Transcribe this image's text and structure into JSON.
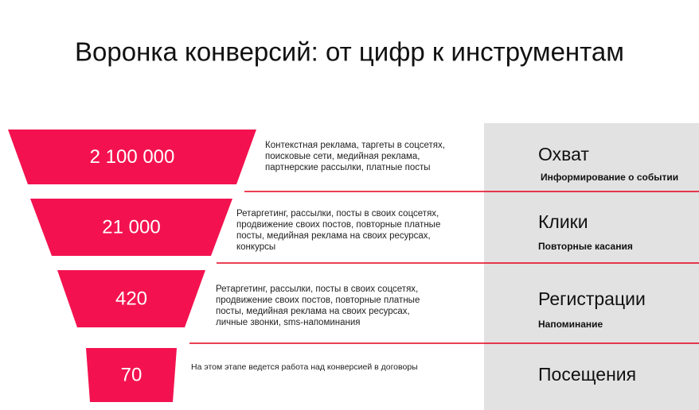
{
  "title": "Воронка конверсий: от цифр к инструментам",
  "stages": [
    {
      "value": "2 100 000",
      "description": [
        "Контекстная реклама, таргеты в соцсетях,",
        "поисковые сети, медийная реклама,",
        "партнерские рассылки, платные посты"
      ],
      "name": "Охват",
      "subtitle": "Информирование о событии"
    },
    {
      "value": "21 000",
      "description": [
        "Ретаргетинг, рассылки, посты в своих соцсетях,",
        "продвижение своих постов, повторные платные",
        "посты, медийная реклама на своих ресурсах,",
        "конкурсы"
      ],
      "name": "Клики",
      "subtitle": "Повторные касания"
    },
    {
      "value": "420",
      "description": [
        "Ретаргетинг, рассылки, посты в своих соцсетях,",
        "продвижение своих постов, повторные платные",
        "посты, медийная реклама на своих ресурсах,",
        "личные звонки, sms-напоминания"
      ],
      "name": "Регистрации",
      "subtitle": "Напоминание"
    },
    {
      "value": "70",
      "description": [
        "На этом этапе ведется работа над конверсией в договоры"
      ],
      "name": "Посещения"
    }
  ]
}
